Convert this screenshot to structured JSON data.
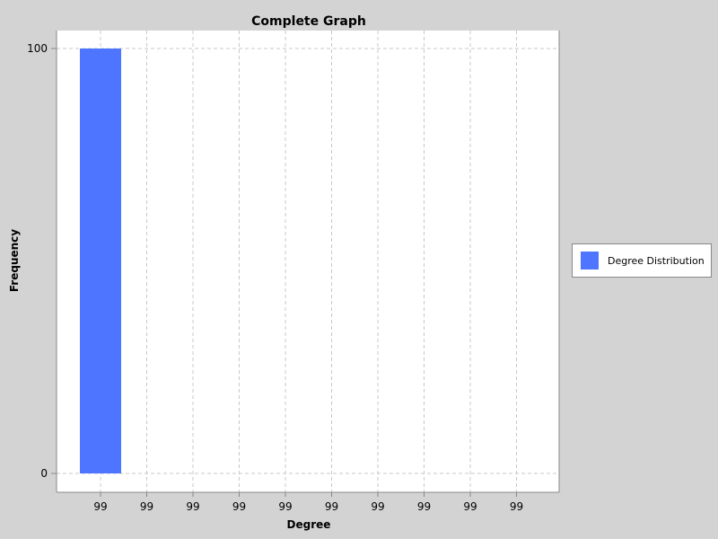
{
  "chart_data": {
    "type": "bar",
    "title": "Complete Graph",
    "xlabel": "Degree",
    "ylabel": "Frequency",
    "categories": [
      "99",
      "99",
      "99",
      "99",
      "99",
      "99",
      "99",
      "99",
      "99",
      "99"
    ],
    "series": [
      {
        "name": "Degree Distribution",
        "values": [
          100,
          0,
          0,
          0,
          0,
          0,
          0,
          0,
          0,
          0
        ],
        "color": "#4d75ff"
      }
    ],
    "y_ticks": [
      "0",
      "100"
    ],
    "ylim": [
      0,
      100
    ],
    "grid": true,
    "legend_position": "right"
  },
  "colors": {
    "background": "#d3d3d3",
    "plot_background": "#ffffff",
    "grid": "#c8c8c8",
    "bar": "#4d75ff"
  }
}
